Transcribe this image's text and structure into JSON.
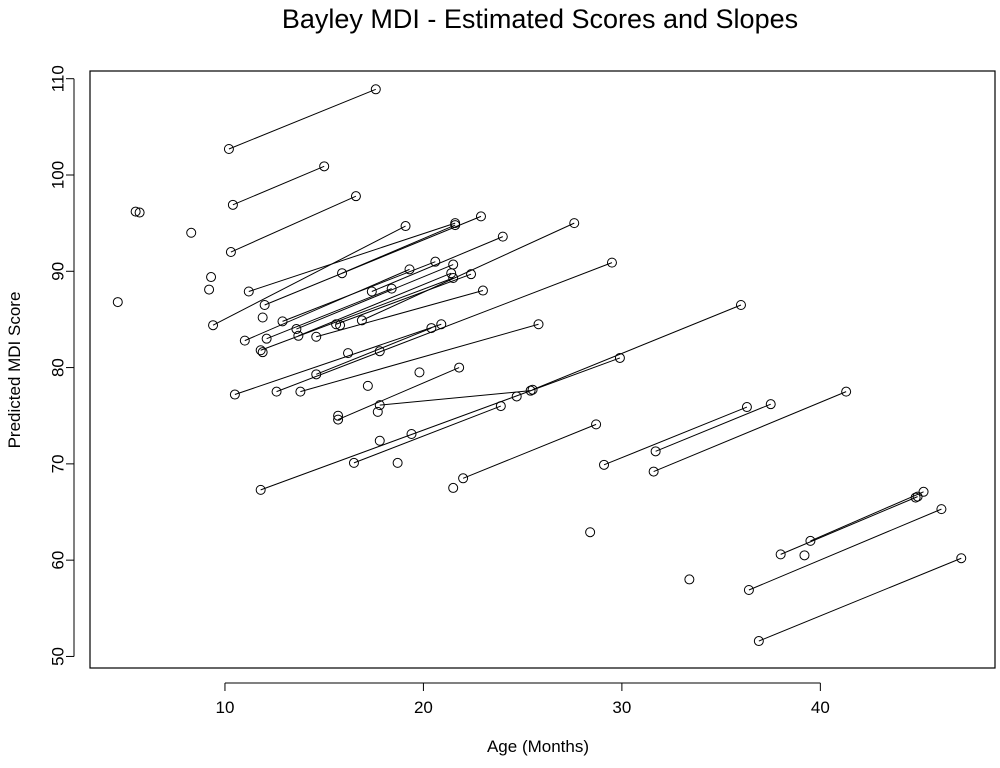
{
  "chart_data": {
    "type": "scatter",
    "title": "Bayley MDI - Estimated Scores and Slopes",
    "xlabel": "Age (Months)",
    "ylabel": "Predicted MDI Score",
    "xlim": [
      3.2,
      48.8
    ],
    "ylim": [
      48.8,
      110.8
    ],
    "xticks": [
      10,
      20,
      30,
      40
    ],
    "yticks": [
      50,
      60,
      70,
      80,
      90,
      100,
      110
    ],
    "grid": false,
    "colors": {
      "line": "#000000",
      "marker": "#000000",
      "background": "#ffffff"
    },
    "segments": [
      {
        "x1": 10.2,
        "y1": 102.7,
        "x2": 17.6,
        "y2": 108.9
      },
      {
        "x1": 10.4,
        "y1": 96.9,
        "x2": 15.0,
        "y2": 100.9
      },
      {
        "x1": 10.3,
        "y1": 92.0,
        "x2": 16.6,
        "y2": 97.8
      },
      {
        "x1": 9.4,
        "y1": 84.4,
        "x2": 19.1,
        "y2": 94.7
      },
      {
        "x1": 11.2,
        "y1": 87.9,
        "x2": 21.6,
        "y2": 95.0
      },
      {
        "x1": 12.0,
        "y1": 86.5,
        "x2": 22.9,
        "y2": 95.7
      },
      {
        "x1": 15.9,
        "y1": 89.8,
        "x2": 21.6,
        "y2": 94.8
      },
      {
        "x1": 12.9,
        "y1": 84.8,
        "x2": 20.6,
        "y2": 91.0
      },
      {
        "x1": 13.6,
        "y1": 84.0,
        "x2": 21.5,
        "y2": 90.7
      },
      {
        "x1": 13.7,
        "y1": 83.3,
        "x2": 21.4,
        "y2": 89.8
      },
      {
        "x1": 15.6,
        "y1": 84.5,
        "x2": 22.4,
        "y2": 89.7
      },
      {
        "x1": 17.4,
        "y1": 87.9,
        "x2": 24.0,
        "y2": 93.6
      },
      {
        "x1": 16.9,
        "y1": 84.9,
        "x2": 27.6,
        "y2": 95.0
      },
      {
        "x1": 11.0,
        "y1": 82.8,
        "x2": 19.3,
        "y2": 90.2
      },
      {
        "x1": 11.8,
        "y1": 81.8,
        "x2": 21.5,
        "y2": 89.3
      },
      {
        "x1": 14.6,
        "y1": 83.2,
        "x2": 23.0,
        "y2": 88.0
      },
      {
        "x1": 12.1,
        "y1": 83.0,
        "x2": 18.4,
        "y2": 88.2
      },
      {
        "x1": 10.5,
        "y1": 77.2,
        "x2": 20.9,
        "y2": 84.5
      },
      {
        "x1": 12.6,
        "y1": 77.5,
        "x2": 29.5,
        "y2": 90.9
      },
      {
        "x1": 14.6,
        "y1": 79.3,
        "x2": 20.4,
        "y2": 84.1
      },
      {
        "x1": 13.8,
        "y1": 77.5,
        "x2": 25.8,
        "y2": 84.5
      },
      {
        "x1": 15.7,
        "y1": 74.6,
        "x2": 21.8,
        "y2": 80.0
      },
      {
        "x1": 17.8,
        "y1": 76.1,
        "x2": 25.4,
        "y2": 77.6
      },
      {
        "x1": 16.5,
        "y1": 70.1,
        "x2": 23.9,
        "y2": 76.0
      },
      {
        "x1": 11.8,
        "y1": 67.3,
        "x2": 29.9,
        "y2": 81.0
      },
      {
        "x1": 25.5,
        "y1": 77.7,
        "x2": 36.0,
        "y2": 86.5
      },
      {
        "x1": 22.0,
        "y1": 68.5,
        "x2": 28.7,
        "y2": 74.1
      },
      {
        "x1": 29.1,
        "y1": 69.9,
        "x2": 36.3,
        "y2": 75.9
      },
      {
        "x1": 31.7,
        "y1": 71.3,
        "x2": 37.5,
        "y2": 76.2
      },
      {
        "x1": 31.6,
        "y1": 69.2,
        "x2": 41.3,
        "y2": 77.5
      },
      {
        "x1": 39.5,
        "y1": 62.0,
        "x2": 45.2,
        "y2": 67.1
      },
      {
        "x1": 38.0,
        "y1": 60.6,
        "x2": 44.9,
        "y2": 66.6
      },
      {
        "x1": 36.4,
        "y1": 56.9,
        "x2": 46.1,
        "y2": 65.3
      },
      {
        "x1": 36.9,
        "y1": 51.6,
        "x2": 47.1,
        "y2": 60.2
      }
    ],
    "isolated_points": [
      {
        "x": 4.6,
        "y": 86.8
      },
      {
        "x": 5.5,
        "y": 96.2
      },
      {
        "x": 5.7,
        "y": 96.1
      },
      {
        "x": 8.3,
        "y": 94.0
      },
      {
        "x": 9.2,
        "y": 88.1
      },
      {
        "x": 9.3,
        "y": 89.4
      },
      {
        "x": 11.9,
        "y": 85.2
      },
      {
        "x": 11.9,
        "y": 81.6
      },
      {
        "x": 15.8,
        "y": 84.4
      },
      {
        "x": 16.2,
        "y": 81.5
      },
      {
        "x": 17.8,
        "y": 81.7
      },
      {
        "x": 15.7,
        "y": 75.0
      },
      {
        "x": 17.2,
        "y": 78.1
      },
      {
        "x": 17.7,
        "y": 75.4
      },
      {
        "x": 19.8,
        "y": 79.5
      },
      {
        "x": 17.8,
        "y": 72.4
      },
      {
        "x": 19.4,
        "y": 73.1
      },
      {
        "x": 18.7,
        "y": 70.1
      },
      {
        "x": 21.5,
        "y": 67.5
      },
      {
        "x": 24.7,
        "y": 77.0
      },
      {
        "x": 28.4,
        "y": 62.9
      },
      {
        "x": 33.4,
        "y": 58.0
      },
      {
        "x": 39.2,
        "y": 60.5
      },
      {
        "x": 44.8,
        "y": 66.5
      }
    ]
  }
}
